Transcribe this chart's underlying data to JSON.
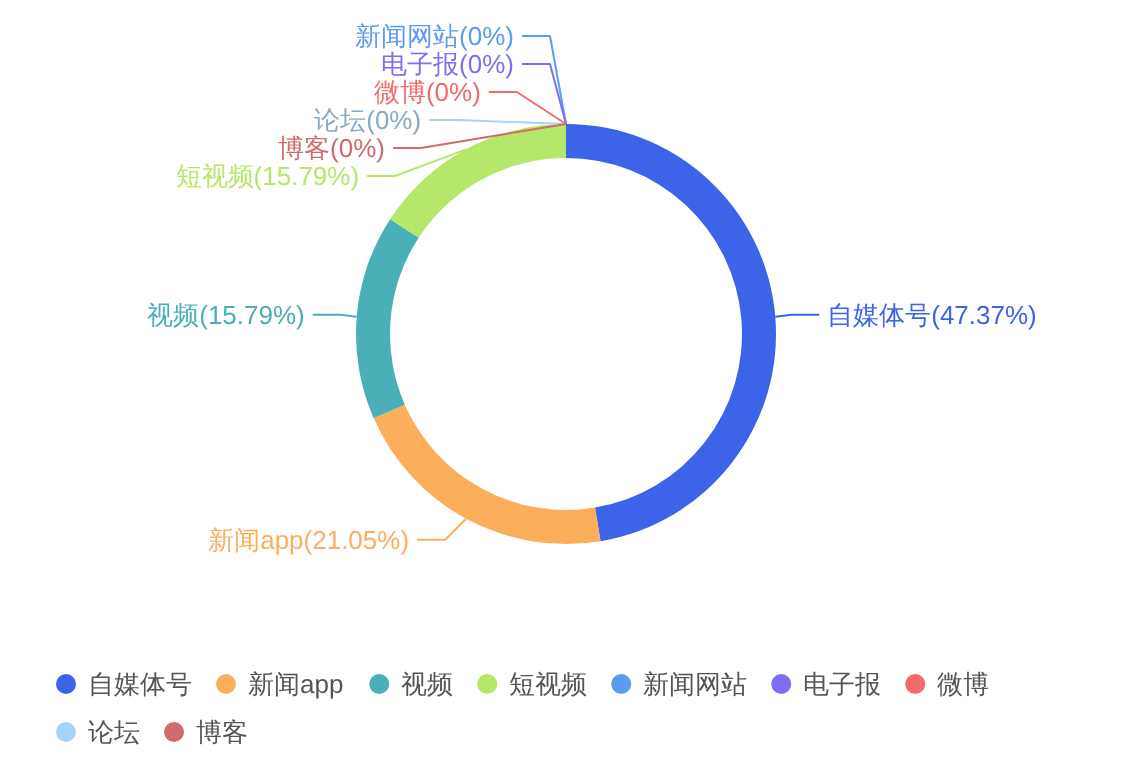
{
  "chart_data": {
    "type": "donut",
    "categories": [
      "自媒体号",
      "新闻app",
      "视频",
      "短视频",
      "新闻网站",
      "电子报",
      "微博",
      null,
      "论坛",
      "博客"
    ],
    "values": [
      47.37,
      21.05,
      15.79,
      15.79,
      0,
      0,
      0,
      0,
      0,
      0
    ],
    "value_labels": [
      "(47.37%)",
      "(21.05%)",
      "(15.79%)",
      "(15.79%)",
      "(0%)",
      "(0%)",
      "(0%)",
      null,
      "(0%)",
      "(0%)"
    ],
    "colors": [
      "#3d63e8",
      "#fdae5c",
      "#4aafb7",
      "#b5e76a",
      "#5b9bf0",
      "#7f6ef2",
      "#f26b6b",
      "#3dc46d",
      "#a6d3f8",
      "#d06b6b"
    ],
    "legend": "bottom"
  }
}
